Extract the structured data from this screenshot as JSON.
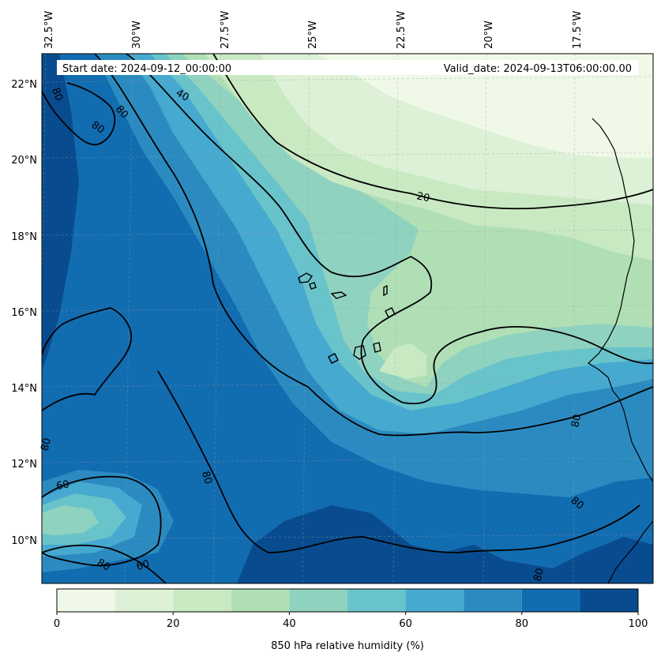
{
  "header": {
    "start_date": "Start date: 2024-09-12_00:00:00",
    "valid_date": "Valid_date: 2024-09-13T06:00:00.00"
  },
  "lon_ticks": [
    "32.5°W",
    "30°W",
    "27.5°W",
    "25°W",
    "22.5°W",
    "20°W",
    "17.5°W"
  ],
  "lat_ticks": [
    "22°N",
    "20°N",
    "18°N",
    "16°N",
    "14°N",
    "12°N",
    "10°N"
  ],
  "contour_labels": [
    {
      "text": "40",
      "name": "contour-label-40-north"
    },
    {
      "text": "20",
      "name": "contour-label-20"
    },
    {
      "text": "80",
      "name": "contour-label-80-nw-a"
    },
    {
      "text": "80",
      "name": "contour-label-80-nw-b"
    },
    {
      "text": "80",
      "name": "contour-label-80-nw-c"
    },
    {
      "text": "80",
      "name": "contour-label-80-west"
    },
    {
      "text": "60",
      "name": "contour-label-60-west"
    },
    {
      "text": "80",
      "name": "contour-label-80-central"
    },
    {
      "text": "80",
      "name": "contour-label-80-southwest"
    },
    {
      "text": "60",
      "name": "contour-label-60-southwest"
    },
    {
      "text": "80",
      "name": "contour-label-80-east"
    },
    {
      "text": "80",
      "name": "contour-label-80-southeast"
    },
    {
      "text": "80",
      "name": "contour-label-80-south"
    }
  ],
  "colorbar": {
    "label": "850 hPa relative humidity (%)",
    "ticks": [
      "0",
      "20",
      "40",
      "60",
      "80",
      "100"
    ],
    "colors": [
      "#f0f9e8",
      "#ddf1d6",
      "#c9e9c3",
      "#b0dfb6",
      "#8fd2bf",
      "#68c3ca",
      "#46a9d0",
      "#2b8bc0",
      "#126cb0",
      "#084c8f"
    ]
  },
  "chart_data": {
    "type": "heatmap",
    "variable": "850 hPa relative humidity (%)",
    "levels": [
      0,
      10,
      20,
      30,
      40,
      50,
      60,
      70,
      80,
      90,
      100
    ],
    "colorbar_ticks": [
      0,
      20,
      40,
      60,
      80,
      100
    ],
    "lon_range": [
      -32.5,
      -15.5
    ],
    "lat_range": [
      9.0,
      22.7
    ],
    "contour_levels": [
      20,
      40,
      60,
      80
    ],
    "gridlines": true,
    "coastlines": true
  }
}
